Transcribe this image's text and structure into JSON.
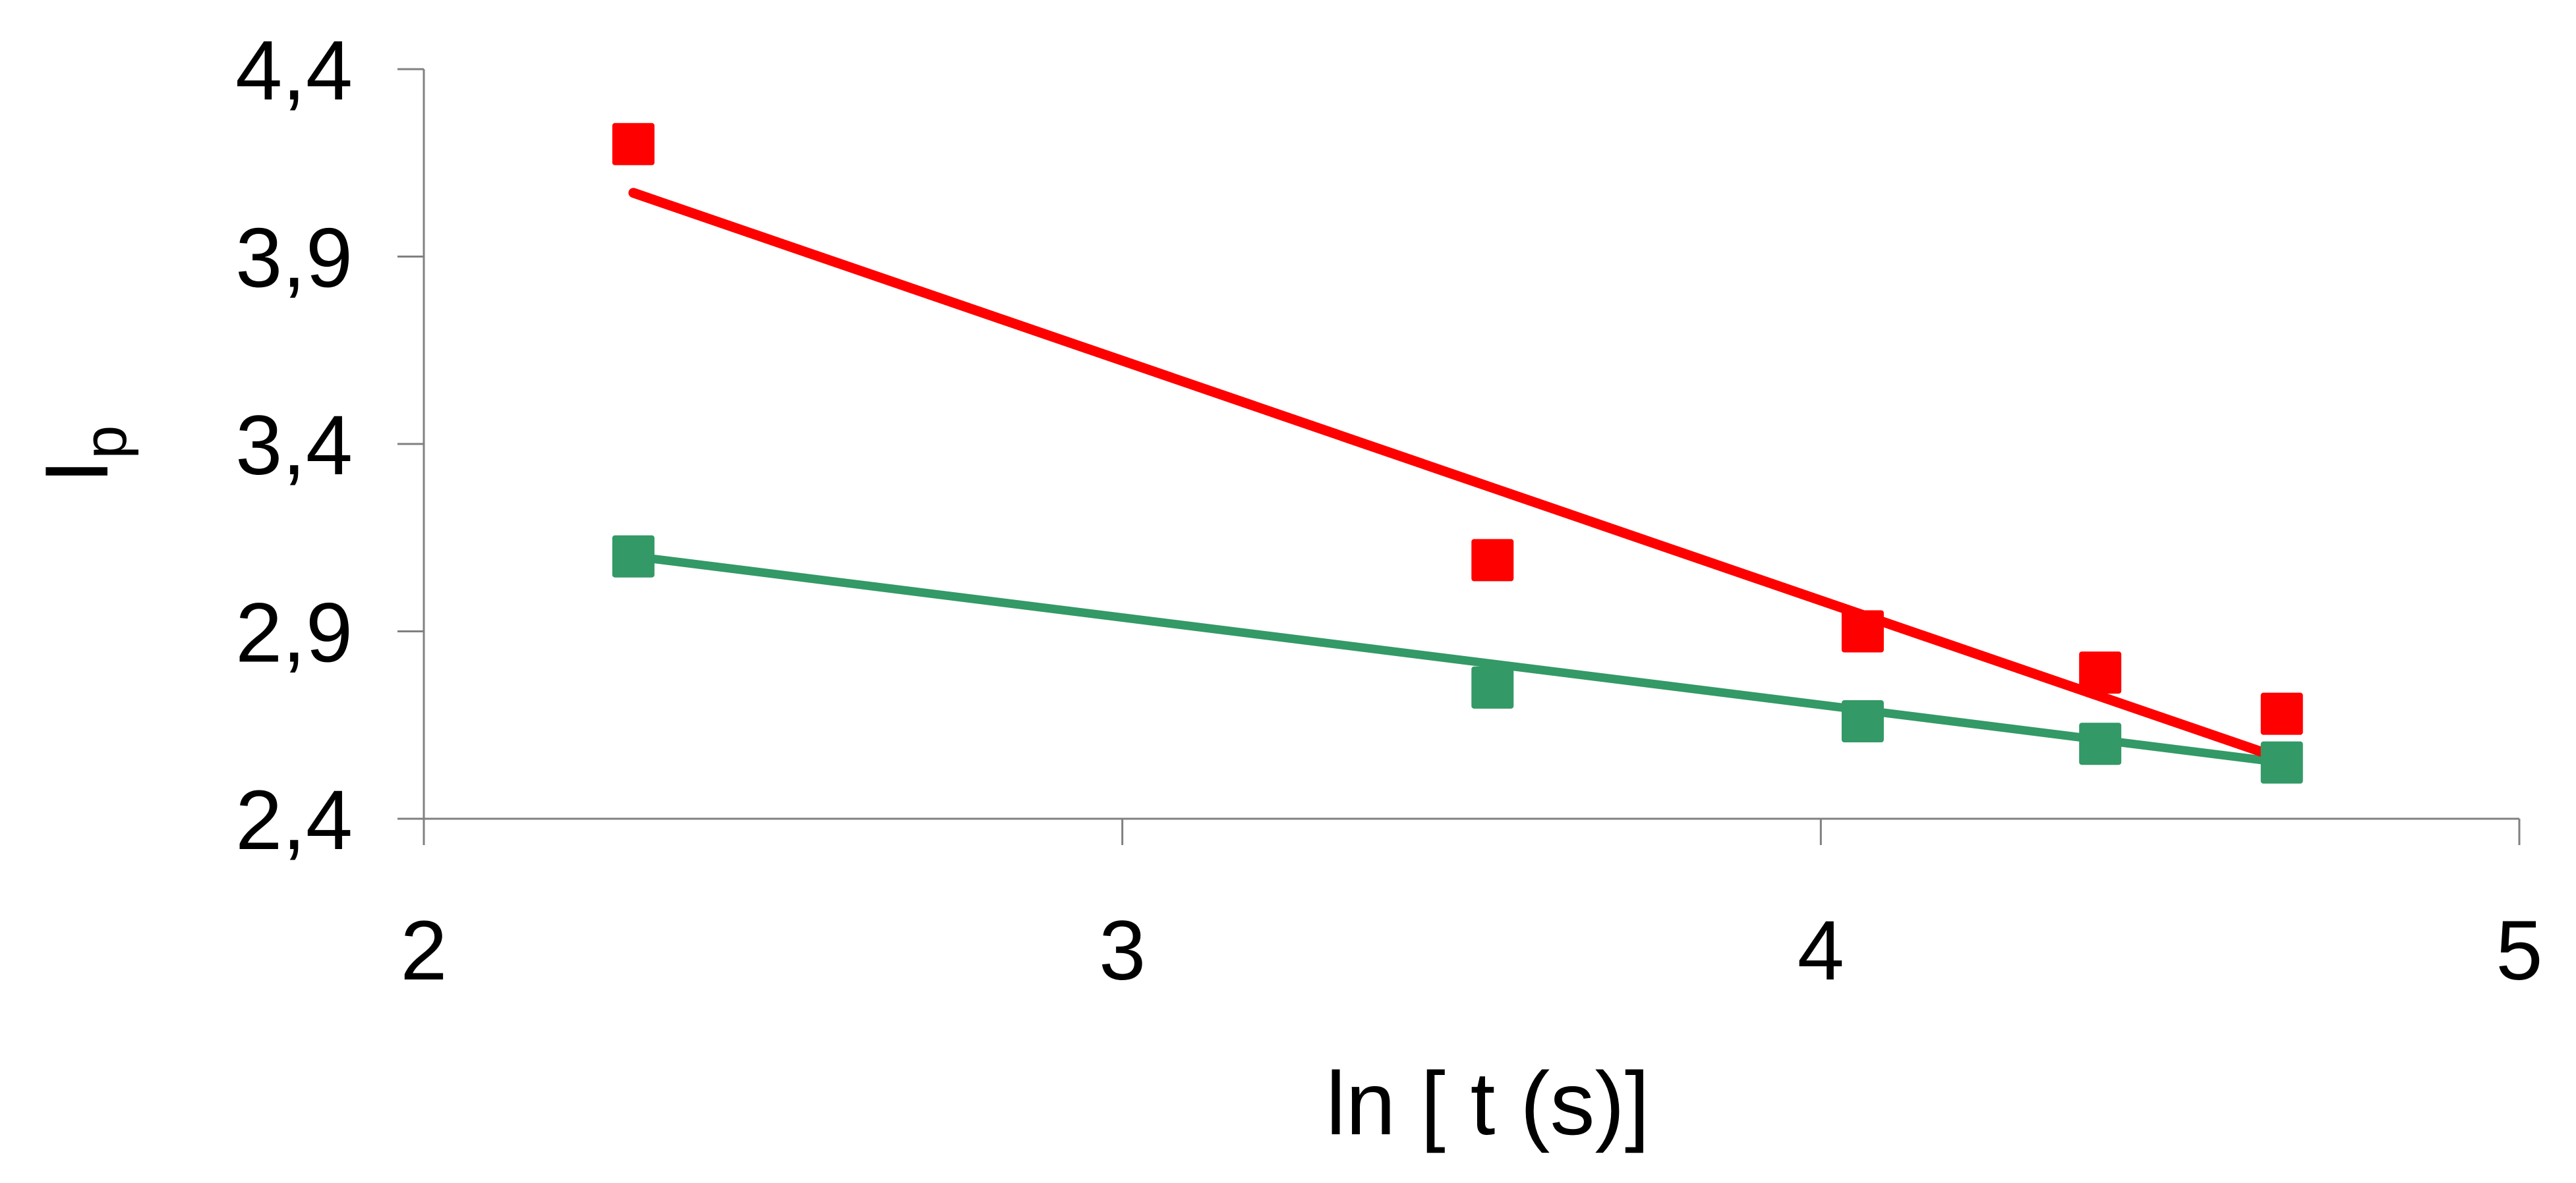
{
  "chart_data": {
    "type": "scatter",
    "title": "",
    "xlabel": "ln [ t (s)]",
    "ylabel": {
      "main": "I",
      "sub": "p"
    },
    "xlim": [
      2,
      5
    ],
    "ylim": [
      2.4,
      4.4
    ],
    "x_ticks": [
      "2",
      "3",
      "4",
      "5"
    ],
    "y_ticks": [
      "2,4",
      "2,9",
      "3,4",
      "3,9",
      "4,4"
    ],
    "x_tick_values": [
      2,
      3,
      4,
      5
    ],
    "y_tick_values": [
      2.4,
      2.9,
      3.4,
      3.9,
      4.4
    ],
    "grid": false,
    "legend": "none",
    "series": [
      {
        "color": "#ff0000",
        "marker": "square",
        "x": [
          2.3,
          3.53,
          4.06,
          4.4,
          4.66
        ],
        "y": [
          4.2,
          3.09,
          2.9,
          2.79,
          2.68
        ],
        "trendline": {
          "x": [
            2.3,
            4.66
          ],
          "y": [
            4.07,
            2.56
          ]
        }
      },
      {
        "color": "#339966",
        "marker": "square",
        "x": [
          2.3,
          3.53,
          4.06,
          4.4,
          4.66
        ],
        "y": [
          3.1,
          2.75,
          2.66,
          2.6,
          2.55
        ],
        "trendline": {
          "x": [
            2.3,
            4.66
          ],
          "y": [
            3.1,
            2.55
          ]
        }
      }
    ]
  }
}
